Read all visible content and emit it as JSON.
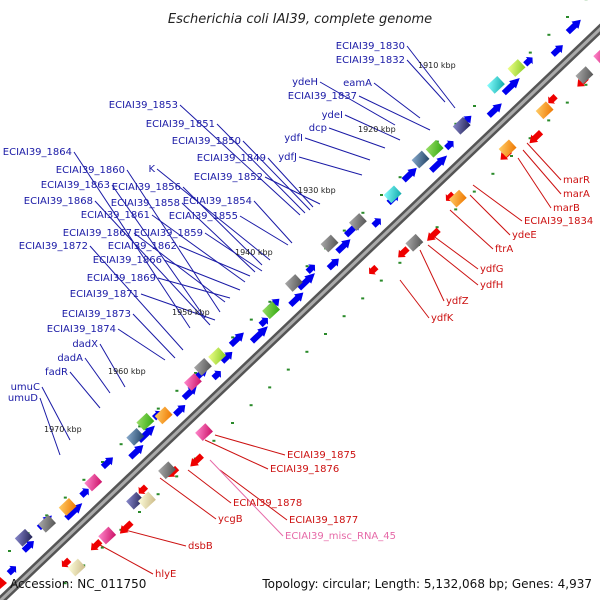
{
  "title": "Escherichia coli IAI39, complete genome",
  "footer": {
    "accession": "Accession: NC_011750",
    "summary": "Topology: circular; Length: 5,132,068 bp; Genes: 4,937"
  },
  "kbp_ticks": [
    {
      "text": "1910 kbp"
    },
    {
      "text": "1920 kbp"
    },
    {
      "text": "1930 kbp"
    },
    {
      "text": "1940 kbp"
    },
    {
      "text": "1950 kbp"
    },
    {
      "text": "1960 kbp"
    },
    {
      "text": "1970 kbp"
    }
  ],
  "blue_labels": [
    "ECIAI39_1830",
    "ECIAI39_1832",
    "eamA",
    "ydeH",
    "ECIAI39_1837",
    "ydeI",
    "dcp",
    "ydfI",
    "ydfJ",
    "ECIAI39_1853",
    "ECIAI39_1851",
    "ECIAI39_1850",
    "ECIAI39_1849",
    "ECIAI39_1852",
    "ECIAI39_1864",
    "ECIAI39_1860",
    "K",
    "ECIAI39_1863",
    "ECIAI39_1856",
    "ECIAI39_1868",
    "ECIAI39_1858",
    "ECIAI39_1854",
    "ECIAI39_1861",
    "ECIAI39_1855",
    "ECIAI39_1867",
    "ECIAI39_1859",
    "ECIAI39_1872",
    "ECIAI39_1862",
    "ECIAI39_1866",
    "ECIAI39_1869",
    "ECIAI39_1871",
    "ECIAI39_1873",
    "ECIAI39_1874",
    "dadX",
    "dadA",
    "fadR",
    "umuC",
    "umuD"
  ],
  "red_labels": [
    "marR",
    "marA",
    "marB",
    "ECIAI39_1834",
    "ydeE",
    "ftrA",
    "ydfG",
    "ydfH",
    "ydfZ",
    "ydfK",
    "ECIAI39_1875",
    "ECIAI39_1876",
    "ECIAI39_1878",
    "ycgB",
    "ECIAI39_1877",
    "dsbB",
    "hlyE"
  ],
  "pink_labels": [
    "ECIAI39_misc_RNA_45"
  ],
  "colors": {
    "forward_gene": "#0000ee",
    "reverse_gene": "#ee0000",
    "backbone": "#808080",
    "label_blue": "#1a1aa6",
    "label_red": "#cc1111",
    "label_pink": "#e66aa8"
  }
}
